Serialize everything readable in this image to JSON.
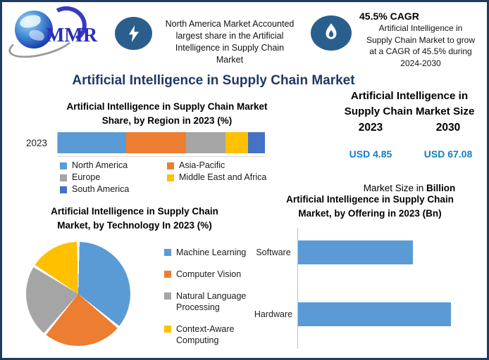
{
  "colors": {
    "frame_border": "#1e3a61",
    "icon_circle": "#2a5e8c",
    "main_title": "#1f3864",
    "usd_value": "#1180c4",
    "logo_blue": "#2b2fb8",
    "bar_blue": "#5B9BD5",
    "bar_orange": "#ED7D31",
    "bar_gray": "#A5A5A5",
    "bar_yellow": "#FFC000",
    "bar_dark_blue": "#4472C4"
  },
  "logo": {
    "text": "MMR"
  },
  "header": {
    "left_highlight": {
      "icon": "lightning-icon",
      "text": "North America Market Accounted largest share in the Artificial Intelligence in Supply Chain Market",
      "text_lines": [
        "North America Market Accounted",
        "largest share in the Artificial",
        "Intelligence in Supply Chain",
        "Market"
      ]
    },
    "right_highlight": {
      "icon": "flame-icon",
      "heading": "45.5% CAGR",
      "text": "Artificial Intelligence in Supply Chain Market to grow at a CAGR of 45.5% during 2024-2030",
      "text_lines": [
        "Artificial Intelligence in",
        "Supply Chain Market to grow",
        "at a CAGR of 45.5% during",
        "2024-2030"
      ]
    }
  },
  "main_title": "Artificial Intelligence in Supply Chain Market",
  "market_size_panel": {
    "title": "Artificial Intelligence in Supply Chain Market Size",
    "title_lines": [
      "Artificial Intelligence in",
      "Supply Chain Market Size"
    ],
    "years": [
      "2023",
      "2030"
    ],
    "values": [
      "USD 4.85",
      "USD 67.08"
    ],
    "note_prefix": "Market Size in ",
    "note_bold": "Billion"
  },
  "chart_data": [
    {
      "type": "bar",
      "subtype": "stacked-horizontal",
      "title": "Artificial Intelligence in Supply Chain Market Share, by Region in 2023 (%)",
      "title_lines": [
        "Artificial Intelligence in Supply Chain Market",
        "Share, by Region in 2023 (%)"
      ],
      "categories": [
        "2023"
      ],
      "series": [
        {
          "name": "North America",
          "color": "#5B9BD5",
          "values": [
            33
          ]
        },
        {
          "name": "Asia-Pacific",
          "color": "#ED7D31",
          "values": [
            29
          ]
        },
        {
          "name": "Europe",
          "color": "#A5A5A5",
          "values": [
            19
          ]
        },
        {
          "name": "Middle East and Africa",
          "color": "#FFC000",
          "values": [
            11
          ]
        },
        {
          "name": "South America",
          "color": "#4472C4",
          "values": [
            8
          ]
        }
      ],
      "xlim": [
        0,
        100
      ],
      "grid": false,
      "legend_position": "bottom"
    },
    {
      "type": "pie",
      "title": "Artificial Intelligence in Supply Chain Market, by Technology In 2023 (%)",
      "title_lines": [
        "Artificial Intelligence in Supply Chain",
        "Market, by Technology In 2023 (%)"
      ],
      "labels": [
        "Machine Learning",
        "Computer Vision",
        "Natural Language Processing",
        "Context-Aware Computing"
      ],
      "values": [
        36,
        25,
        23,
        16
      ],
      "colors": [
        "#5B9BD5",
        "#ED7D31",
        "#A5A5A5",
        "#FFC000"
      ],
      "legend_position": "right",
      "note": "values estimated from slice angles; no data labels shown"
    },
    {
      "type": "bar",
      "subtype": "horizontal",
      "title": "Artificial Intelligence in Supply Chain Market, by Offering in 2023 (Bn)",
      "title_lines": [
        "Artificial Intelligence in Supply Chain",
        "Market, by Offering in 2023 (Bn)"
      ],
      "categories": [
        "Software",
        "Hardware"
      ],
      "values": [
        2.08,
        2.77
      ],
      "color": "#5B9BD5",
      "xlim": [
        0,
        3.35
      ],
      "grid": false,
      "note": "values estimated from bar lengths; no data labels shown"
    }
  ]
}
